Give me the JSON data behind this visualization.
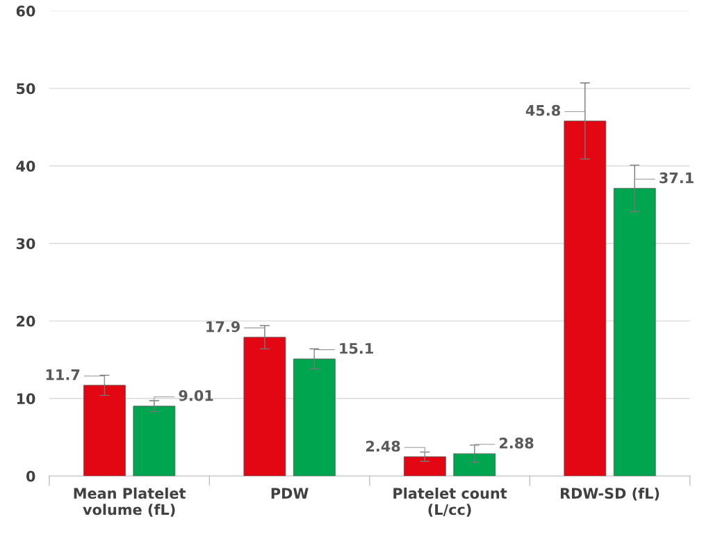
{
  "chart_data": {
    "type": "bar",
    "categories": [
      "Mean Platelet\nvolume (fL)",
      "PDW",
      "Platelet count\n(L/cc)",
      "RDW-SD (fL)"
    ],
    "series": [
      {
        "color": "#e30613",
        "values": [
          11.7,
          17.9,
          2.48,
          45.8
        ],
        "errors": [
          1.3,
          1.5,
          0.6,
          4.9
        ]
      },
      {
        "color": "#00a550",
        "values": [
          9.01,
          15.1,
          2.88,
          37.1
        ],
        "errors": [
          0.7,
          1.3,
          1.1,
          3.0
        ]
      }
    ],
    "ylim": [
      0,
      60
    ],
    "yticks": [
      0,
      10,
      20,
      30,
      40,
      50,
      60
    ],
    "grid": "y",
    "data_labels": true
  }
}
